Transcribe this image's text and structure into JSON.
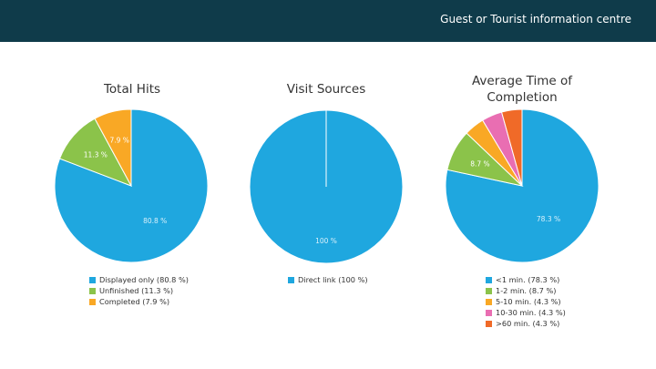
{
  "header": {
    "title": "Guest or Tourist information centre"
  },
  "chart_data": [
    {
      "type": "pie",
      "title": "Total Hits",
      "slices": [
        {
          "label": "Displayed only (80.8 %)",
          "value": 80.8,
          "value_label": "80.8 %",
          "color": "#1fa7df"
        },
        {
          "label": "Unfinished (11.3 %)",
          "value": 11.3,
          "value_label": "11.3 %",
          "color": "#8bc34a"
        },
        {
          "label": "Completed (7.9 %)",
          "value": 7.9,
          "value_label": "7.9 %",
          "color": "#f9a825"
        }
      ]
    },
    {
      "type": "pie",
      "title": "Visit Sources",
      "slices": [
        {
          "label": "Direct link (100 %)",
          "value": 100,
          "value_label": "100 %",
          "color": "#1fa7df"
        }
      ]
    },
    {
      "type": "pie",
      "title": "Average Time of Completion",
      "slices": [
        {
          "label": "<1 min. (78.3 %)",
          "value": 78.3,
          "value_label": "78.3 %",
          "color": "#1fa7df"
        },
        {
          "label": "1-2 min. (8.7 %)",
          "value": 8.7,
          "value_label": "8.7 %",
          "color": "#8bc34a"
        },
        {
          "label": "5-10 min. (4.3 %)",
          "value": 4.3,
          "value_label": "",
          "color": "#f9a825"
        },
        {
          "label": "10-30 min. (4.3 %)",
          "value": 4.3,
          "value_label": "",
          "color": "#e96eb2"
        },
        {
          "label": ">60 min. (4.3 %)",
          "value": 4.3,
          "value_label": "",
          "color": "#f06a28"
        }
      ]
    }
  ]
}
